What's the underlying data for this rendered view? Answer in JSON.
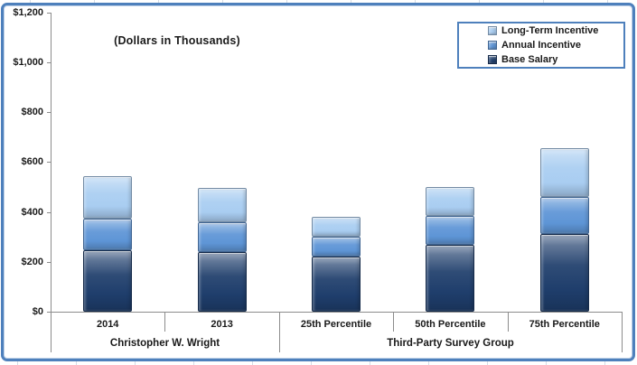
{
  "chart_data": {
    "type": "bar",
    "stacked": true,
    "title": "(Dollars in Thousands)",
    "categories": [
      "2014",
      "2013",
      "25th Percentile",
      "50th Percentile",
      "75th Percentile"
    ],
    "category_groups": [
      {
        "label": "Christopher W. Wright",
        "categories": [
          "2014",
          "2013"
        ]
      },
      {
        "label": "Third-Party Survey Group",
        "categories": [
          "25th Percentile",
          "50th Percentile",
          "75th Percentile"
        ]
      }
    ],
    "series": [
      {
        "name": "Base Salary",
        "color": "#1F3E6C",
        "values": [
          245,
          240,
          220,
          270,
          310
        ]
      },
      {
        "name": "Annual Incentive",
        "color": "#5E95D6",
        "values": [
          130,
          120,
          80,
          115,
          150
        ]
      },
      {
        "name": "Long-Term Incentive",
        "color": "#A9CDF1",
        "values": [
          170,
          135,
          80,
          115,
          195
        ]
      }
    ],
    "stack_totals": [
      545,
      495,
      380,
      500,
      655
    ],
    "y_axis": {
      "range": [
        0,
        1200
      ],
      "tick_step": 200,
      "gridlines": false,
      "ticks": [
        {
          "value": 0,
          "label": "$0"
        },
        {
          "value": 200,
          "label": "$200"
        },
        {
          "value": 400,
          "label": "$400"
        },
        {
          "value": 600,
          "label": "$600"
        },
        {
          "value": 800,
          "label": "$800"
        },
        {
          "value": 1000,
          "label": "$1,000"
        },
        {
          "value": 1200,
          "label": "$1,200"
        }
      ]
    },
    "legend": {
      "position": "top-right",
      "entries": [
        "Long-Term Incentive",
        "Annual Incentive",
        "Base Salary"
      ]
    },
    "colors": {
      "chart_border": "#4E80BC",
      "axis": "#8C8C8C",
      "text": "#1A1A1A",
      "background": "#FFFFFF"
    }
  }
}
